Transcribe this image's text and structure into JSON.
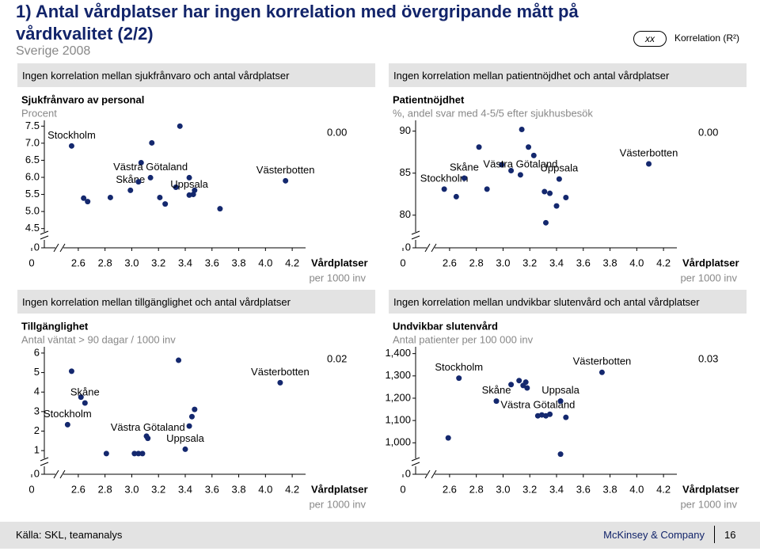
{
  "header": {
    "title_line1": "1) Antal vårdplatser har ingen korrelation med övergripande mått på",
    "title_line2": "vårdkvalitet (2/2)",
    "subtitle": "Sverige 2008",
    "legend_symbol": "xx",
    "legend_label": "Korrelation (R²)"
  },
  "footer": {
    "source": "Källa: SKL, teamanalys",
    "company": "McKinsey & Company",
    "page": "16"
  },
  "chart_data": [
    {
      "type": "scatter",
      "title": "Ingen korrelation mellan sjukfrånvaro och antal vårdplatser",
      "y_label": "Sjukfrånvaro av personal",
      "y_sublabel": "Procent",
      "x_label": "Vårdplatser",
      "x_sublabel": "per 1000 inv",
      "annotation": "0.00",
      "color": "#14286e",
      "x": [
        2.55,
        2.64,
        2.67,
        2.84,
        2.99,
        3.05,
        3.07,
        3.14,
        3.15,
        3.21,
        3.25,
        3.33,
        3.36,
        3.43,
        3.43,
        3.46,
        3.47,
        3.66,
        4.15
      ],
      "values": [
        6.92,
        5.39,
        5.29,
        5.41,
        5.62,
        5.87,
        6.43,
        5.99,
        7.01,
        5.41,
        5.22,
        5.71,
        7.5,
        5.99,
        5.48,
        5.5,
        5.62,
        5.08,
        5.9
      ],
      "point_names": [
        "Stockholm",
        null,
        null,
        null,
        "Skåne",
        null,
        null,
        "Västra Götaland",
        null,
        null,
        null,
        null,
        null,
        null,
        "Uppsala",
        null,
        null,
        null,
        "Västerbotten"
      ],
      "xlim": [
        2.5,
        4.3
      ],
      "xticks": [
        0,
        2.6,
        2.8,
        {
          "value": 3,
          "label": "3.0"
        },
        3.2,
        3.4,
        3.6,
        3.8,
        {
          "value": 4,
          "label": "4.0"
        },
        4.2
      ],
      "ylim": [
        4.4,
        7.6
      ],
      "yticks": [
        0,
        4.5,
        {
          "value": 5,
          "label": "5.0"
        },
        5.5,
        {
          "value": 6,
          "label": "6.0"
        },
        6.5,
        {
          "value": 7,
          "label": "7.0"
        },
        7.5
      ],
      "axis_break": true
    },
    {
      "type": "scatter",
      "title": "Ingen korrelation mellan patientnöjdhet och antal vårdplatser",
      "y_label": "Patientnöjdhet",
      "y_sublabel": "%, andel svar med 4-5/5 efter sjukhusbesök",
      "x_label": "Vårdplatser",
      "x_sublabel": "per 1000 inv",
      "annotation": "0.00",
      "color": "#14286e",
      "x": [
        2.56,
        2.65,
        2.71,
        2.82,
        2.88,
        2.99,
        3.06,
        3.13,
        3.14,
        3.19,
        3.23,
        3.31,
        3.32,
        3.35,
        3.4,
        3.42,
        3.47,
        4.09
      ],
      "values": [
        83.1,
        82.2,
        84.4,
        88.1,
        83.1,
        86.0,
        85.3,
        84.8,
        90.2,
        88.1,
        87.1,
        82.8,
        79.1,
        82.6,
        81.1,
        84.3,
        82.1,
        86.1
      ],
      "point_names": [
        "Stockholm",
        null,
        "Skåne",
        null,
        null,
        null,
        null,
        "Västra Götaland",
        null,
        null,
        null,
        null,
        null,
        null,
        null,
        "Uppsala",
        null,
        "Västerbotten"
      ],
      "xlim": [
        2.5,
        4.3
      ],
      "xticks": [
        0,
        2.6,
        2.8,
        {
          "value": 3,
          "label": "3.0"
        },
        3.2,
        3.4,
        3.6,
        3.8,
        {
          "value": 4,
          "label": "4.0"
        },
        4.2
      ],
      "ylim": [
        78,
        91
      ],
      "yticks": [
        0,
        80,
        85,
        90
      ],
      "axis_break": true
    },
    {
      "type": "scatter",
      "title": "Ingen korrelation mellan tillgänglighet och antal vårdplatser",
      "y_label": "Tillgänglighet",
      "y_sublabel": "Antal väntat > 90 dagar / 1000 inv",
      "x_label": "Vårdplatser",
      "x_sublabel": "per 1000 inv",
      "annotation": "0.02",
      "color": "#14286e",
      "x": [
        2.52,
        2.55,
        2.62,
        2.65,
        2.81,
        3.02,
        3.05,
        3.08,
        3.11,
        3.12,
        3.35,
        3.4,
        3.43,
        3.45,
        3.47,
        4.11
      ],
      "values": [
        2.33,
        5.07,
        3.74,
        3.44,
        0.85,
        0.85,
        0.85,
        0.85,
        1.74,
        1.63,
        5.63,
        1.07,
        2.26,
        2.74,
        3.11,
        4.48
      ],
      "point_names": [
        "Stockholm",
        null,
        null,
        "Skåne",
        null,
        null,
        null,
        null,
        null,
        "Västra Götaland",
        null,
        "Uppsala",
        null,
        null,
        null,
        "Västerbotten"
      ],
      "xlim": [
        2.5,
        4.3
      ],
      "xticks": [
        0,
        2.6,
        2.8,
        {
          "value": 3,
          "label": "3.0"
        },
        3.2,
        3.4,
        3.6,
        3.8,
        {
          "value": 4,
          "label": "4.0"
        },
        4.2
      ],
      "ylim": [
        0.6,
        6.2
      ],
      "yticks": [
        0,
        1,
        2,
        3,
        4,
        5,
        6
      ],
      "axis_break": true
    },
    {
      "type": "scatter",
      "title": "Ingen korrelation mellan undvikbar slutenvård och antal vårdplatser",
      "y_label": "Undvikbar slutenvård",
      "y_sublabel": "Antal patienter per 100 000 inv",
      "x_label": "Vårdplatser",
      "x_sublabel": "per 1000 inv",
      "annotation": "0.03",
      "color": "#14286e",
      "x": [
        2.59,
        2.67,
        2.95,
        3.06,
        3.12,
        3.15,
        3.17,
        3.18,
        3.26,
        3.29,
        3.32,
        3.35,
        3.43,
        3.43,
        3.47,
        3.74
      ],
      "values": [
        1022,
        1290,
        1187,
        1261,
        1279,
        1257,
        1272,
        1246,
        1121,
        1125,
        1121,
        1128,
        949,
        1187,
        1114,
        1316
      ],
      "point_names": [
        null,
        "Stockholm",
        "Skåne",
        null,
        null,
        null,
        null,
        null,
        "Västra Götaland",
        null,
        null,
        null,
        null,
        "Uppsala",
        null,
        "Västerbotten"
      ],
      "xlim": [
        2.5,
        4.3
      ],
      "xticks": [
        0,
        2.6,
        2.8,
        {
          "value": 3,
          "label": "3.0"
        },
        3.2,
        3.4,
        3.6,
        3.8,
        {
          "value": 4,
          "label": "4.0"
        },
        4.2
      ],
      "ylim": [
        930,
        1420
      ],
      "yticks": [
        0,
        {
          "value": 1000,
          "label": "1,000"
        },
        {
          "value": 1100,
          "label": "1,100"
        },
        {
          "value": 1200,
          "label": "1,200"
        },
        {
          "value": 1300,
          "label": "1,300"
        },
        {
          "value": 1400,
          "label": "1,400"
        }
      ],
      "axis_break": true
    }
  ]
}
